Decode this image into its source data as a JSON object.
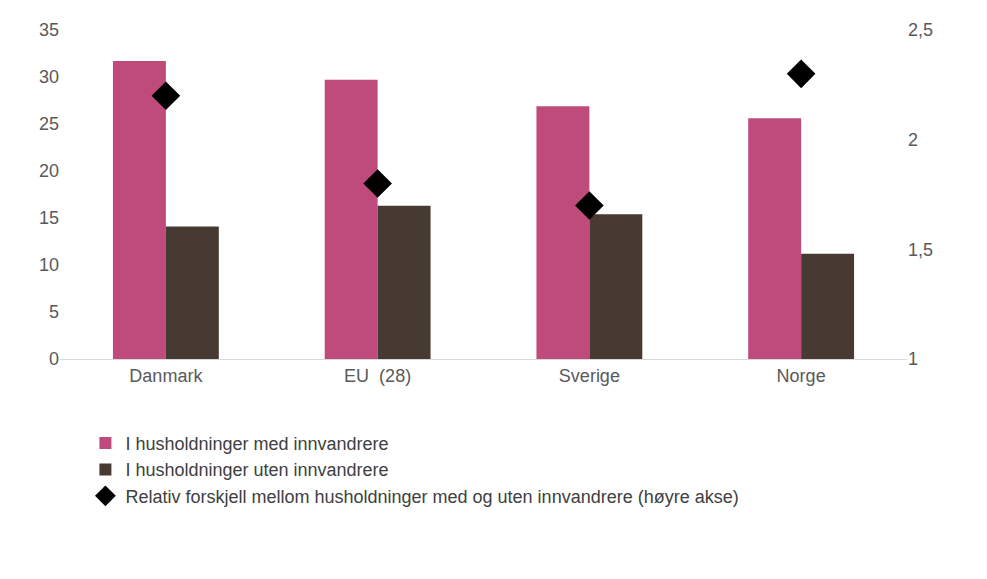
{
  "chart_data": {
    "type": "bar",
    "categories": [
      "Danmark",
      "EU  (28)",
      "Sverige",
      "Norge"
    ],
    "series": [
      {
        "name": "I husholdninger med innvandrere",
        "color": "#BE4B7C",
        "type": "bar",
        "values": [
          31.7,
          29.7,
          26.9,
          25.6
        ]
      },
      {
        "name": "I husholdninger uten innvandrere",
        "color": "#463A33",
        "type": "bar",
        "values": [
          14.1,
          16.3,
          15.4,
          11.2
        ]
      },
      {
        "name": "Relativ forskjell mellom husholdninger med og uten innvandrere (høyre akse)",
        "color": "#000000",
        "type": "scatter",
        "marker": "diamond",
        "axis": "y2",
        "values": [
          2.2,
          1.8,
          1.7,
          2.3
        ]
      }
    ],
    "ylim": [
      0,
      35
    ],
    "yticks": [
      0,
      5,
      10,
      15,
      20,
      25,
      30,
      35
    ],
    "y2lim": [
      1,
      2.5
    ],
    "y2ticks": [
      1,
      {
        "value": 1.5,
        "label": "1,5"
      },
      2,
      {
        "value": 2.5,
        "label": "2,5"
      }
    ],
    "grid": false,
    "legend": "bottom"
  }
}
